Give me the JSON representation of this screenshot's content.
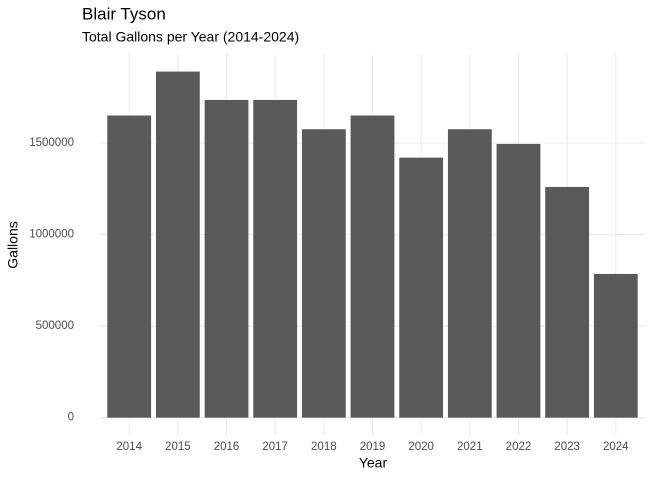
{
  "chart_data": {
    "type": "bar",
    "title": "Blair Tyson",
    "subtitle": "Total Gallons per Year (2014-2024)",
    "x_label": "Year",
    "y_label": "Gallons",
    "categories": [
      "2014",
      "2015",
      "2016",
      "2017",
      "2018",
      "2019",
      "2020",
      "2021",
      "2022",
      "2023",
      "2024"
    ],
    "values": [
      1650000,
      1890000,
      1735000,
      1735000,
      1575000,
      1650000,
      1420000,
      1575000,
      1495000,
      1260000,
      785000
    ],
    "color": "#595959",
    "ylim": [
      -94500,
      1986000
    ],
    "yticks": [
      0,
      500000,
      1000000,
      1500000
    ],
    "grid": true
  }
}
